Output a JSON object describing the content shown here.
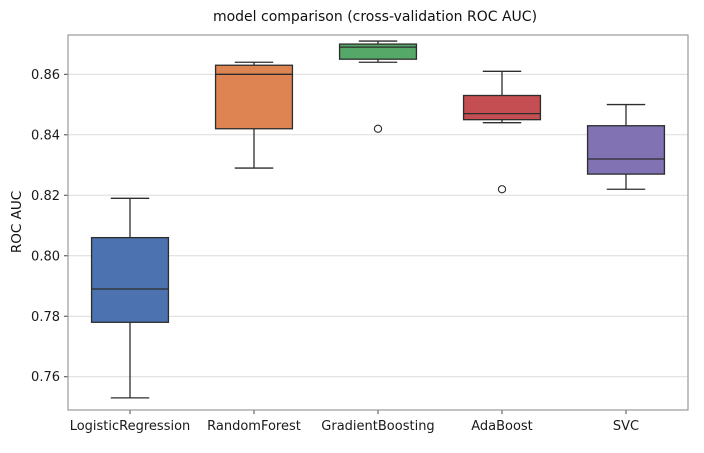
{
  "chart_data": {
    "type": "box",
    "title": "model comparison (cross-validation ROC AUC)",
    "ylabel": "ROC AUC",
    "xlabel": "",
    "ylim": [
      0.749,
      0.873
    ],
    "yticks": [
      0.76,
      0.78,
      0.8,
      0.82,
      0.84,
      0.86
    ],
    "grid": true,
    "legend": false,
    "plot_bg": "#ffffff",
    "grid_color": "#dcdcdc",
    "edge_color": "#2d2d2d",
    "categories": [
      "LogisticRegression",
      "RandomForest",
      "GradientBoosting",
      "AdaBoost",
      "SVC"
    ],
    "series": [
      {
        "name": "LogisticRegression",
        "whisker_low": 0.753,
        "q1": 0.778,
        "median": 0.789,
        "q3": 0.806,
        "whisker_high": 0.819,
        "outliers": [],
        "color": "#4C72B0"
      },
      {
        "name": "RandomForest",
        "whisker_low": 0.829,
        "q1": 0.842,
        "median": 0.86,
        "q3": 0.863,
        "whisker_high": 0.864,
        "outliers": [],
        "color": "#DD8452"
      },
      {
        "name": "GradientBoosting",
        "whisker_low": 0.864,
        "q1": 0.865,
        "median": 0.869,
        "q3": 0.87,
        "whisker_high": 0.871,
        "outliers": [
          0.842
        ],
        "color": "#55A868"
      },
      {
        "name": "AdaBoost",
        "whisker_low": 0.844,
        "q1": 0.845,
        "median": 0.847,
        "q3": 0.853,
        "whisker_high": 0.861,
        "outliers": [
          0.822
        ],
        "color": "#C44E52"
      },
      {
        "name": "SVC",
        "whisker_low": 0.822,
        "q1": 0.827,
        "median": 0.832,
        "q3": 0.843,
        "whisker_high": 0.85,
        "outliers": [],
        "color": "#8172B3"
      }
    ]
  }
}
